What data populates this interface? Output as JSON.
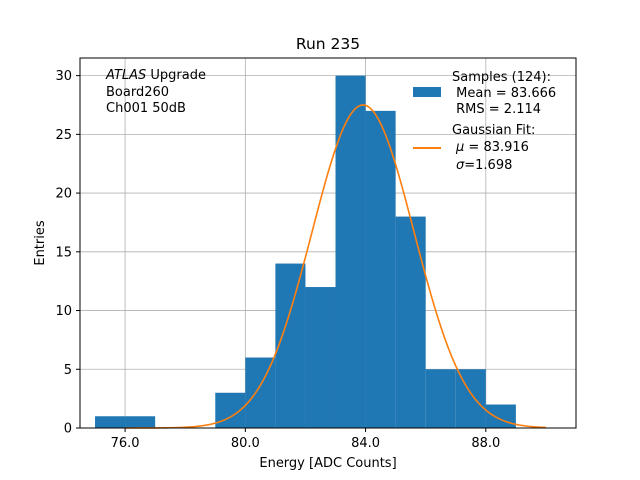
{
  "chart_data": {
    "type": "bar",
    "title": "Run 235",
    "xlabel": "Energy [ADC Counts]",
    "ylabel": "Entries",
    "xlim": [
      74.5,
      91
    ],
    "ylim": [
      0,
      31.5
    ],
    "grid": true,
    "xticks": [
      76,
      80,
      84,
      88
    ],
    "xtick_labels": [
      "76.0",
      "80.0",
      "84.0",
      "88.0"
    ],
    "yticks": [
      0,
      5,
      10,
      15,
      20,
      25,
      30
    ],
    "ytick_labels": [
      "0",
      "5",
      "10",
      "15",
      "20",
      "25",
      "30"
    ],
    "bin_edges": [
      75,
      76,
      77,
      78,
      79,
      80,
      81,
      82,
      83,
      84,
      85,
      86,
      87,
      88,
      89
    ],
    "values": [
      1,
      1,
      0,
      0,
      3,
      6,
      14,
      12,
      30,
      27,
      18,
      5,
      5,
      2
    ],
    "annotation": {
      "line1_italic": "ATLAS",
      "line1_rest": " Upgrade",
      "line2": "Board260",
      "line3": "Ch001 50dB"
    },
    "legend": {
      "placement": "upper right",
      "hist_label": [
        "Samples (124):",
        "Mean = 83.666",
        "RMS = 2.114"
      ],
      "fit_label": [
        "Gaussian Fit:",
        "= 83.916",
        "=1.698"
      ],
      "fit_symbols": [
        "μ",
        "σ"
      ]
    },
    "fit": {
      "type": "gaussian",
      "mu": 83.916,
      "sigma": 1.698,
      "amplitude": 27.5,
      "x_range": [
        76,
        90
      ]
    },
    "colors": {
      "hist": "#1f77b4",
      "fit": "#ff7f0e",
      "grid": "#b0b0b0"
    }
  }
}
